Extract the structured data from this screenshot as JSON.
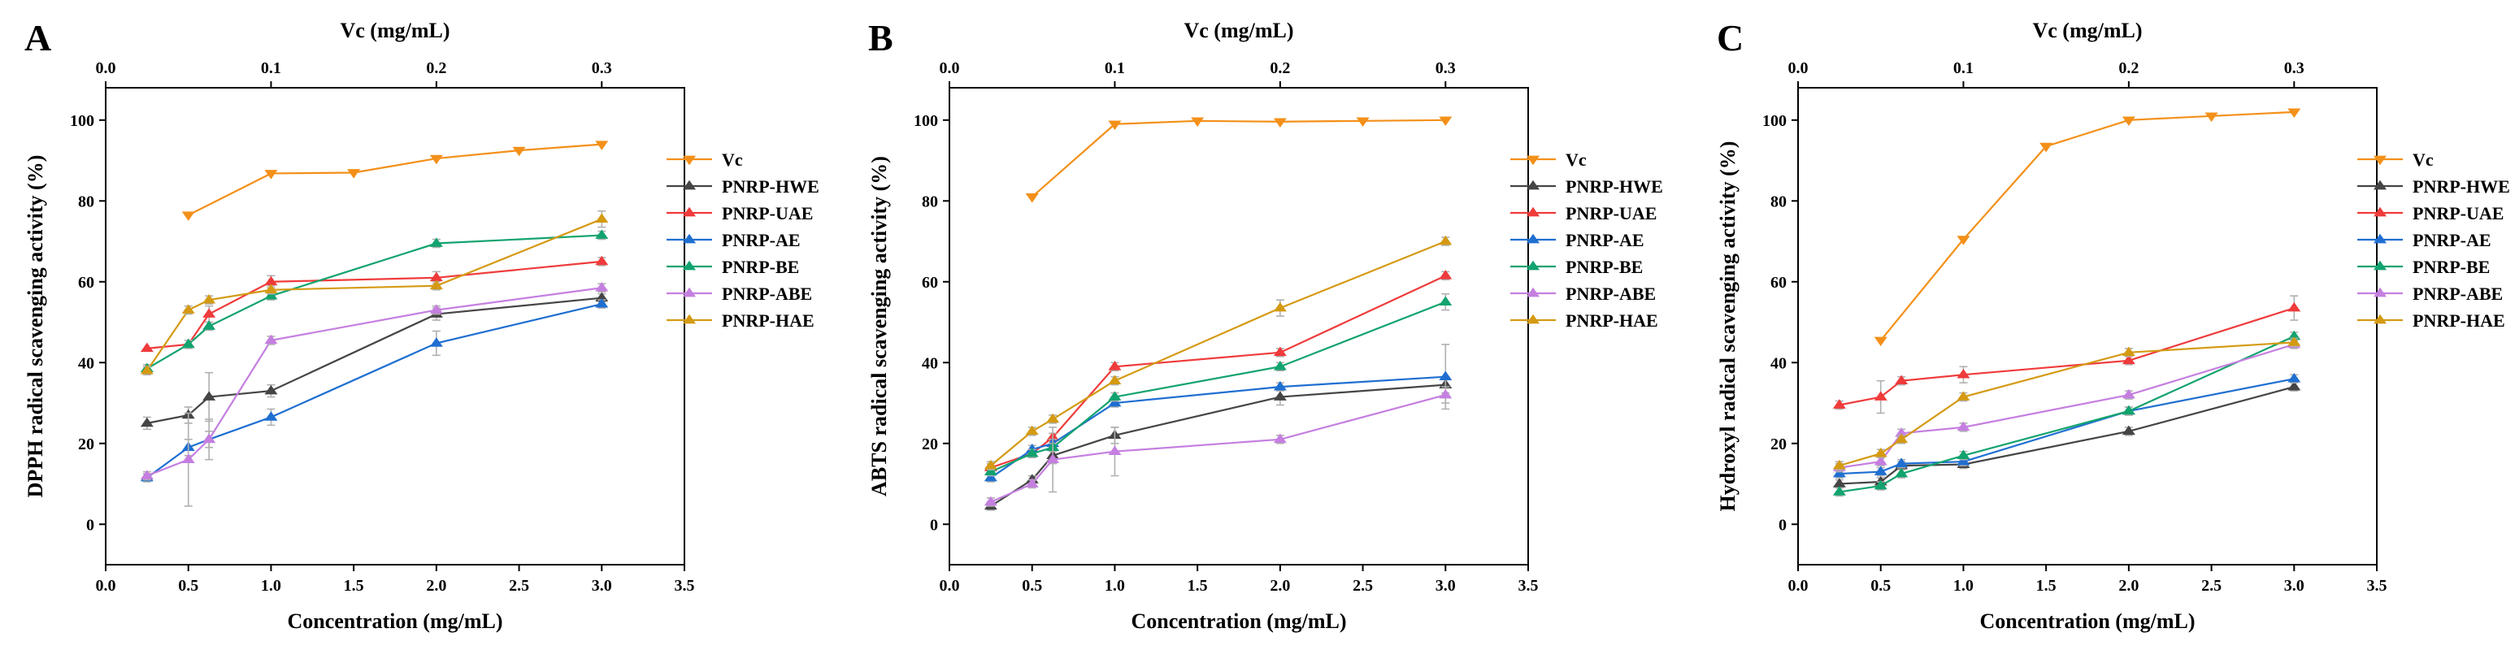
{
  "colors": {
    "Vc": "#f39019",
    "PNRP-HWE": "#454545",
    "PNRP-UAE": "#ef3b3b",
    "PNRP-AE": "#1f6fd1",
    "PNRP-BE": "#12a36e",
    "PNRP-ABE": "#c57fe0",
    "PNRP-HAE": "#d49a13"
  },
  "chart_data": [
    {
      "type": "line",
      "panel": "A",
      "xlabel": "Concentration (mg/mL)",
      "ylabel": "DPPH radical scavenging activity (%)",
      "top_xlabel": "Vc (mg/mL)",
      "xlim": [
        0.0,
        3.5
      ],
      "ylim": [
        -10,
        108
      ],
      "top_xlim": [
        0.0,
        0.35
      ],
      "xticks": [
        "0.0",
        "0.5",
        "1.0",
        "1.5",
        "2.0",
        "2.5",
        "3.0",
        "3.5"
      ],
      "yticks": [
        "0",
        "20",
        "40",
        "60",
        "80",
        "100"
      ],
      "top_xticks": [
        "0.0",
        "0.1",
        "0.2",
        "0.3"
      ],
      "legend_position": "right",
      "series": [
        {
          "name": "Vc",
          "marker": "down",
          "axis": "top",
          "x": [
            0.05,
            0.1,
            0.15,
            0.2,
            0.25,
            0.3
          ],
          "values": [
            76.5,
            86.8,
            87.0,
            90.5,
            92.5,
            94.0
          ],
          "errors": [
            0,
            0,
            0,
            0,
            0,
            0
          ]
        },
        {
          "name": "PNRP-HWE",
          "marker": "up",
          "axis": "bottom",
          "x": [
            0.25,
            0.5,
            0.625,
            1.0,
            2.0,
            3.0
          ],
          "values": [
            25.0,
            27.0,
            31.5,
            33.0,
            52.0,
            56.0
          ],
          "errors": [
            1.5,
            2,
            6,
            1.5,
            1.5,
            1
          ]
        },
        {
          "name": "PNRP-UAE",
          "marker": "up",
          "axis": "bottom",
          "x": [
            0.25,
            0.5,
            0.625,
            1.0,
            2.0,
            3.0
          ],
          "values": [
            43.5,
            44.5,
            52.0,
            60.0,
            61.0,
            65.0
          ],
          "errors": [
            0,
            0,
            2,
            1.5,
            1.5,
            1
          ]
        },
        {
          "name": "PNRP-AE",
          "marker": "up",
          "axis": "bottom",
          "x": [
            0.25,
            0.5,
            0.625,
            1.0,
            2.0,
            3.0
          ],
          "values": [
            11.5,
            19.0,
            21.0,
            26.5,
            44.8,
            54.5
          ],
          "errors": [
            1,
            2,
            2,
            2,
            3,
            1
          ]
        },
        {
          "name": "PNRP-BE",
          "marker": "up",
          "axis": "bottom",
          "x": [
            0.25,
            0.5,
            0.625,
            1.0,
            2.0,
            3.0
          ],
          "values": [
            38.5,
            44.5,
            49.0,
            56.5,
            69.5,
            71.5
          ],
          "errors": [
            1,
            1,
            1,
            1,
            1,
            1
          ]
        },
        {
          "name": "PNRP-ABE",
          "marker": "up",
          "axis": "bottom",
          "x": [
            0.25,
            0.5,
            0.625,
            1.0,
            2.0,
            3.0
          ],
          "values": [
            12.0,
            16.0,
            21.0,
            45.5,
            53.0,
            58.5
          ],
          "errors": [
            1,
            11.5,
            5,
            1,
            1,
            1
          ]
        },
        {
          "name": "PNRP-HAE",
          "marker": "up",
          "axis": "bottom",
          "x": [
            0.25,
            0.5,
            0.625,
            1.0,
            2.0,
            3.0
          ],
          "values": [
            38.0,
            53.0,
            55.5,
            58.0,
            59.0,
            75.5
          ],
          "errors": [
            1,
            1,
            1,
            1,
            1,
            2
          ]
        }
      ]
    },
    {
      "type": "line",
      "panel": "B",
      "xlabel": "Concentration (mg/mL)",
      "ylabel": "ABTS radical scavenging activity (%)",
      "top_xlabel": "Vc (mg/mL)",
      "xlim": [
        0.0,
        3.5
      ],
      "ylim": [
        -10,
        108
      ],
      "top_xlim": [
        0.0,
        0.35
      ],
      "xticks": [
        "0.0",
        "0.5",
        "1.0",
        "1.5",
        "2.0",
        "2.5",
        "3.0",
        "3.5"
      ],
      "yticks": [
        "0",
        "20",
        "40",
        "60",
        "80",
        "100"
      ],
      "top_xticks": [
        "0.0",
        "0.1",
        "0.2",
        "0.3"
      ],
      "legend_position": "right",
      "series": [
        {
          "name": "Vc",
          "marker": "down",
          "axis": "top",
          "x": [
            0.05,
            0.1,
            0.15,
            0.2,
            0.25,
            0.3
          ],
          "values": [
            81.0,
            99.0,
            99.8,
            99.6,
            99.8,
            100.0
          ],
          "errors": [
            0,
            0,
            0,
            0,
            0,
            0
          ]
        },
        {
          "name": "PNRP-HWE",
          "marker": "up",
          "axis": "bottom",
          "x": [
            0.25,
            0.5,
            0.625,
            1.0,
            2.0,
            3.0
          ],
          "values": [
            4.5,
            11.0,
            17.0,
            22.0,
            31.5,
            34.5
          ],
          "errors": [
            1,
            1,
            2,
            2,
            2,
            2
          ]
        },
        {
          "name": "PNRP-UAE",
          "marker": "up",
          "axis": "bottom",
          "x": [
            0.25,
            0.5,
            0.625,
            1.0,
            2.0,
            3.0
          ],
          "values": [
            14.0,
            17.5,
            21.5,
            39.0,
            42.5,
            61.5
          ],
          "errors": [
            1,
            1,
            1,
            1,
            1,
            1
          ]
        },
        {
          "name": "PNRP-AE",
          "marker": "up",
          "axis": "bottom",
          "x": [
            0.25,
            0.5,
            0.625,
            1.0,
            2.0,
            3.0
          ],
          "values": [
            11.5,
            18.5,
            20.0,
            30.0,
            34.0,
            36.5
          ],
          "errors": [
            1,
            1,
            1,
            1,
            1,
            8
          ]
        },
        {
          "name": "PNRP-BE",
          "marker": "up",
          "axis": "bottom",
          "x": [
            0.25,
            0.5,
            0.625,
            1.0,
            2.0,
            3.0
          ],
          "values": [
            13.0,
            17.5,
            19.0,
            31.5,
            39.0,
            55.0
          ],
          "errors": [
            1,
            1,
            1,
            1,
            1,
            2
          ]
        },
        {
          "name": "PNRP-ABE",
          "marker": "up",
          "axis": "bottom",
          "x": [
            0.25,
            0.5,
            0.625,
            1.0,
            2.0,
            3.0
          ],
          "values": [
            5.5,
            10.0,
            16.0,
            18.0,
            21.0,
            32.0
          ],
          "errors": [
            1,
            1,
            8,
            6,
            1,
            2
          ]
        },
        {
          "name": "PNRP-HAE",
          "marker": "up",
          "axis": "bottom",
          "x": [
            0.25,
            0.5,
            0.625,
            1.0,
            2.0,
            3.0
          ],
          "values": [
            14.5,
            23.0,
            26.0,
            35.5,
            53.5,
            70.0
          ],
          "errors": [
            1,
            1,
            1,
            1,
            2,
            1
          ]
        }
      ]
    },
    {
      "type": "line",
      "panel": "C",
      "xlabel": "Concentration (mg/mL)",
      "ylabel": "Hydroxyl  radical scavenging activity (%)",
      "top_xlabel": "Vc (mg/mL)",
      "xlim": [
        0.0,
        3.5
      ],
      "ylim": [
        -10,
        108
      ],
      "top_xlim": [
        0.0,
        0.35
      ],
      "xticks": [
        "0.0",
        "0.5",
        "1.0",
        "1.5",
        "2.0",
        "2.5",
        "3.0",
        "3.5"
      ],
      "yticks": [
        "0",
        "20",
        "40",
        "60",
        "80",
        "100"
      ],
      "top_xticks": [
        "0.0",
        "0.1",
        "0.2",
        "0.3"
      ],
      "legend_position": "right",
      "series": [
        {
          "name": "Vc",
          "marker": "down",
          "axis": "top",
          "x": [
            0.05,
            0.1,
            0.15,
            0.2,
            0.25,
            0.3
          ],
          "values": [
            45.5,
            70.5,
            93.5,
            100.0,
            101.0,
            102.0
          ],
          "errors": [
            0,
            0,
            0,
            0,
            0,
            0
          ]
        },
        {
          "name": "PNRP-HWE",
          "marker": "up",
          "axis": "bottom",
          "x": [
            0.25,
            0.5,
            0.625,
            1.0,
            2.0,
            3.0
          ],
          "values": [
            10.0,
            10.5,
            14.5,
            14.8,
            23.0,
            34.0
          ],
          "errors": [
            1,
            1,
            1,
            1,
            1,
            1
          ]
        },
        {
          "name": "PNRP-UAE",
          "marker": "up",
          "axis": "bottom",
          "x": [
            0.25,
            0.5,
            0.625,
            1.0,
            2.0,
            3.0
          ],
          "values": [
            29.5,
            31.5,
            35.5,
            37.0,
            40.5,
            53.5
          ],
          "errors": [
            1,
            4,
            1,
            2,
            1,
            3
          ]
        },
        {
          "name": "PNRP-AE",
          "marker": "up",
          "axis": "bottom",
          "x": [
            0.25,
            0.5,
            0.625,
            1.0,
            2.0,
            3.0
          ],
          "values": [
            12.5,
            13.0,
            15.0,
            15.5,
            28.0,
            36.0
          ],
          "errors": [
            1,
            1,
            1,
            1,
            1,
            1
          ]
        },
        {
          "name": "PNRP-BE",
          "marker": "up",
          "axis": "bottom",
          "x": [
            0.25,
            0.5,
            0.625,
            1.0,
            2.0,
            3.0
          ],
          "values": [
            8.0,
            9.5,
            12.5,
            17.0,
            28.0,
            46.5
          ],
          "errors": [
            1,
            1,
            1,
            1,
            1,
            1
          ]
        },
        {
          "name": "PNRP-ABE",
          "marker": "up",
          "axis": "bottom",
          "x": [
            0.25,
            0.5,
            0.625,
            1.0,
            2.0,
            3.0
          ],
          "values": [
            14.0,
            15.5,
            22.5,
            24.0,
            32.0,
            44.5
          ],
          "errors": [
            1,
            1,
            1,
            1,
            1,
            1
          ]
        },
        {
          "name": "PNRP-HAE",
          "marker": "up",
          "axis": "bottom",
          "x": [
            0.25,
            0.5,
            0.625,
            1.0,
            2.0,
            3.0
          ],
          "values": [
            14.5,
            17.5,
            21.0,
            31.5,
            42.5,
            45.0
          ],
          "errors": [
            1,
            1,
            1,
            1,
            1,
            1
          ]
        }
      ]
    }
  ]
}
